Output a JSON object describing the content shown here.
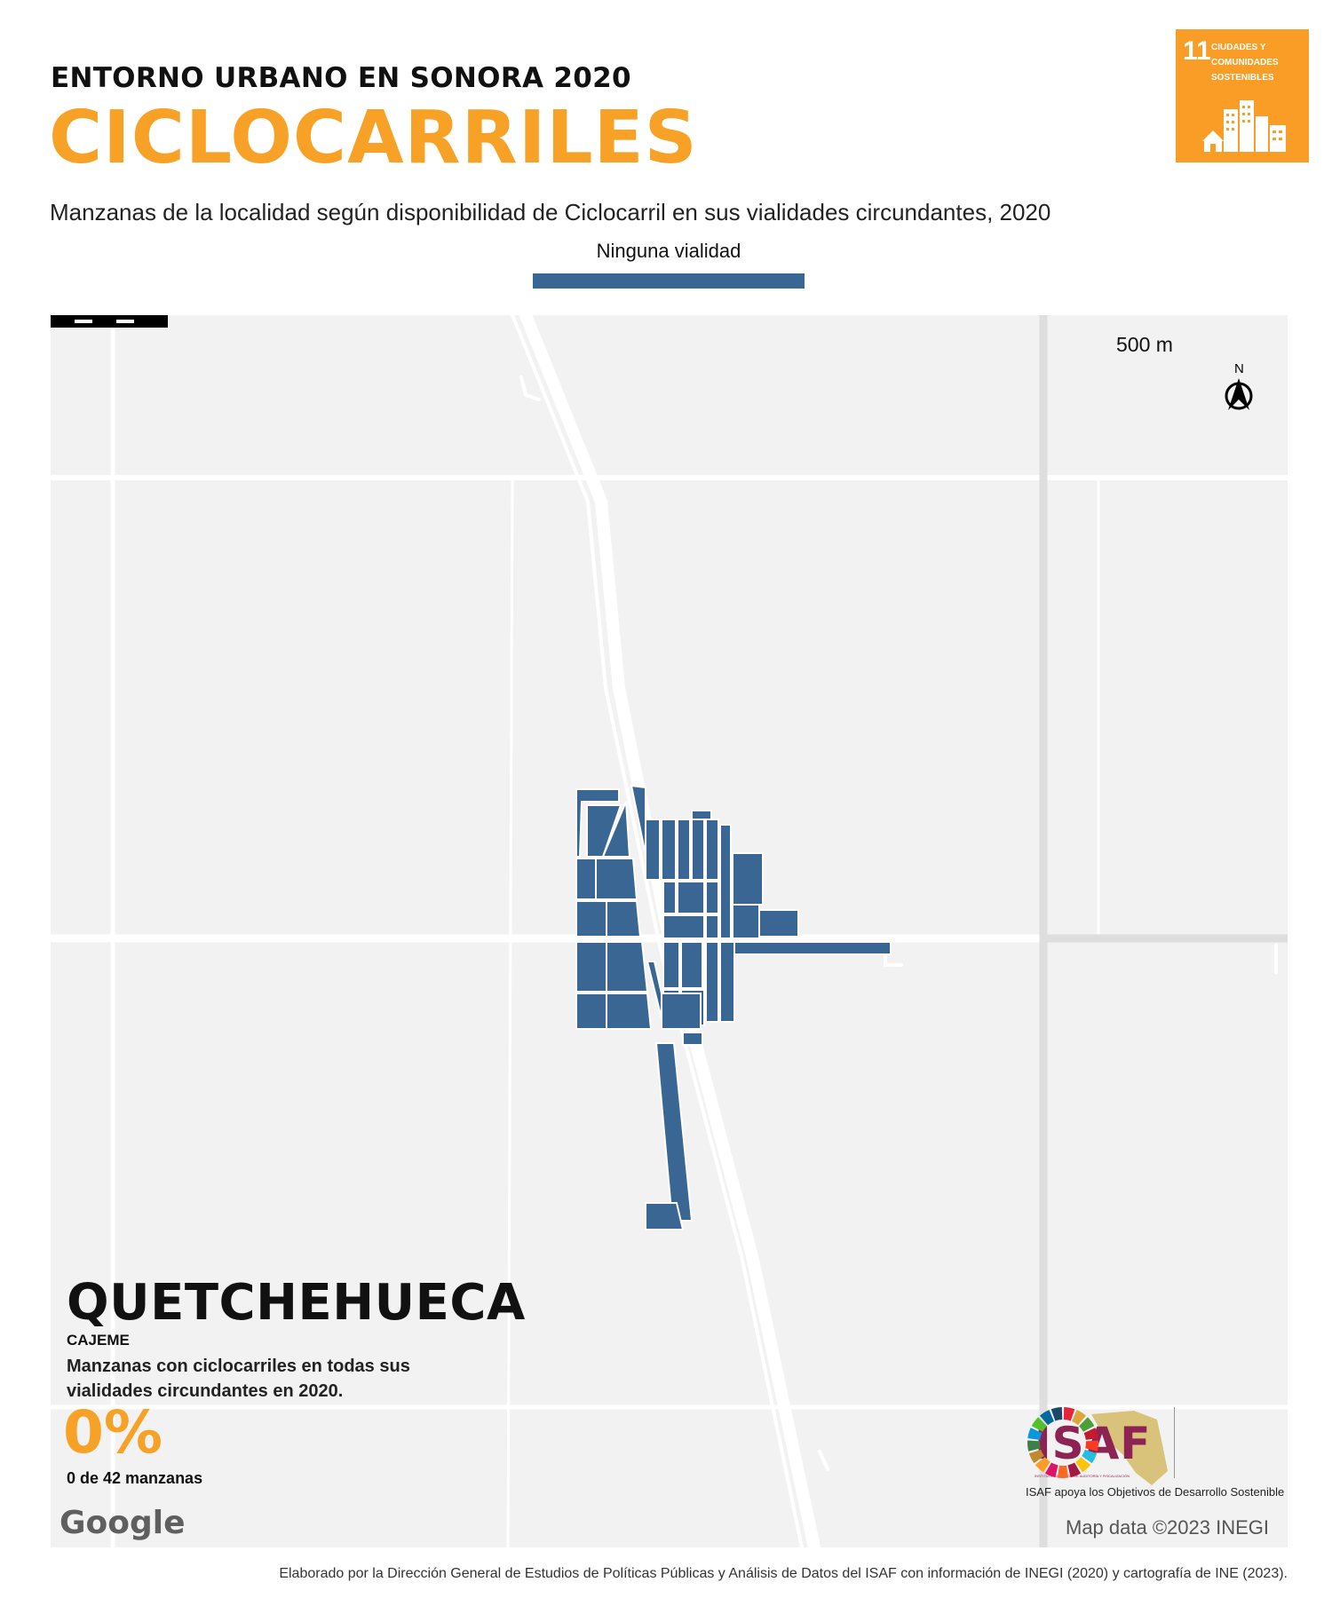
{
  "header": {
    "supertitle": "ENTORNO URBANO EN SONORA 2020",
    "title": "CICLOCARRILES",
    "subtitle": "Manzanas de la localidad según disponibilidad de Ciclocarril en sus vialidades circundantes, 2020"
  },
  "legend": {
    "label": "Ninguna vialidad",
    "color": "#3a6693"
  },
  "sdg_badge": {
    "number": "11",
    "text": "CIUDADES Y\nCOMUNIDADES\nSOSTENIBLES",
    "color": "#f99d26",
    "icon": "city-buildings-icon"
  },
  "map": {
    "scale_label": "500 m",
    "north_label": "N",
    "locality": "QUETCHEHUECA",
    "municipality": "CAJEME",
    "indicator_description": "Manzanas con ciclocarriles en todas sus vialidades circundantes en 2020.",
    "percentage": "0%",
    "count_detail": "0 de 42 manzanas",
    "basemap_logo": "Google",
    "map_credit": "Map data ©2023 INEGI",
    "block_color": "#3a6693"
  },
  "isaf": {
    "word": "ISAF",
    "small_text": "INSTITUTO SUPERIOR DE AUDITORÍA Y FISCALIZACIÓN",
    "tagline": "ISAF apoya los Objetivos de Desarrollo Sostenible"
  },
  "footer": "Elaborado por la Dirección General de Estudios de Políticas Públicas y Análisis de Datos del ISAF con información de INEGI (2020) y cartografía de INE (2023)."
}
